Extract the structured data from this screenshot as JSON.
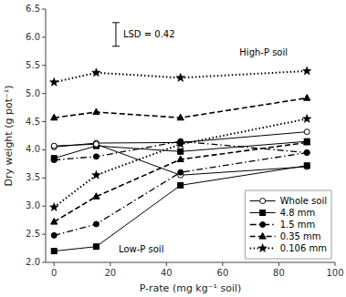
{
  "chart_data": {
    "type": "line",
    "x": [
      0,
      15,
      45,
      90
    ],
    "series": [
      {
        "name": "Whole soil",
        "color": "black",
        "marker": "circle-open",
        "line_style": "solid",
        "values": [
          4.05,
          4.12,
          4.13,
          4.32
        ]
      },
      {
        "name": "4.8 mm",
        "color": "black",
        "marker": "square",
        "line_style": "solid",
        "values": [
          3.85,
          4.07,
          3.97,
          4.15
        ]
      },
      {
        "name": "1.5 mm",
        "color": "black",
        "marker": "circle",
        "line_style": "dashdot",
        "values": [
          3.82,
          3.88,
          4.15,
          3.95
        ]
      },
      {
        "name": "0.35 mm",
        "color": "black",
        "marker": "triangle",
        "line_style": "dashed",
        "values": [
          4.57,
          4.67,
          4.57,
          4.92
        ]
      },
      {
        "name": "0.106 mm",
        "color": "black",
        "marker": "star",
        "line_style": "dotted",
        "values": [
          5.2,
          5.37,
          5.28,
          5.4
        ]
      },
      {
        "name": "Whole soil",
        "color": "black",
        "marker": "circle-open",
        "line_style": "solid",
        "values": [
          4.07,
          4.1,
          3.55,
          3.7
        ]
      },
      {
        "name": "4.8 mm",
        "color": "black",
        "marker": "square",
        "line_style": "solid",
        "values": [
          2.2,
          2.28,
          3.37,
          3.72
        ]
      },
      {
        "name": "1.5 mm",
        "color": "black",
        "marker": "circle",
        "line_style": "dashdot",
        "values": [
          2.48,
          2.68,
          3.6,
          3.95
        ]
      },
      {
        "name": "0.35 mm",
        "color": "black",
        "marker": "triangle",
        "line_style": "dashed",
        "values": [
          2.72,
          3.17,
          3.83,
          4.13
        ]
      },
      {
        "name": "0.106 mm",
        "color": "black",
        "marker": "star",
        "line_style": "dotted",
        "values": [
          2.98,
          3.55,
          4.1,
          4.55
        ]
      }
    ],
    "error_bars": [
      {
        "x": 22,
        "y": 6.05,
        "error": 0.21,
        "label": "LSD = 0.42"
      }
    ],
    "annotations": [
      {
        "text": "High-P soil",
        "x": 66,
        "y": 5.72
      },
      {
        "text": "Low-P soil",
        "x": 23,
        "y": 2.22
      }
    ],
    "xlim": [
      -3,
      100
    ],
    "ylim": [
      2.0,
      6.5
    ],
    "xticks": [
      0,
      20,
      40,
      60,
      80,
      100
    ],
    "yticks": [
      {
        "value": 2.0,
        "label": "2.0"
      },
      2.5,
      {
        "value": 3.0,
        "label": "3.0"
      },
      3.5,
      {
        "value": 4.0,
        "label": "4.0"
      },
      4.5,
      {
        "value": 5.0,
        "label": "5.0"
      },
      5.5,
      {
        "value": 6.0,
        "label": "6.0"
      },
      6.5
    ],
    "xlabel": "P-rate (mg kg⁻¹ soil)",
    "ylabel": "Dry weight (g pot⁻¹)",
    "grid": false,
    "legend": "lower right"
  }
}
